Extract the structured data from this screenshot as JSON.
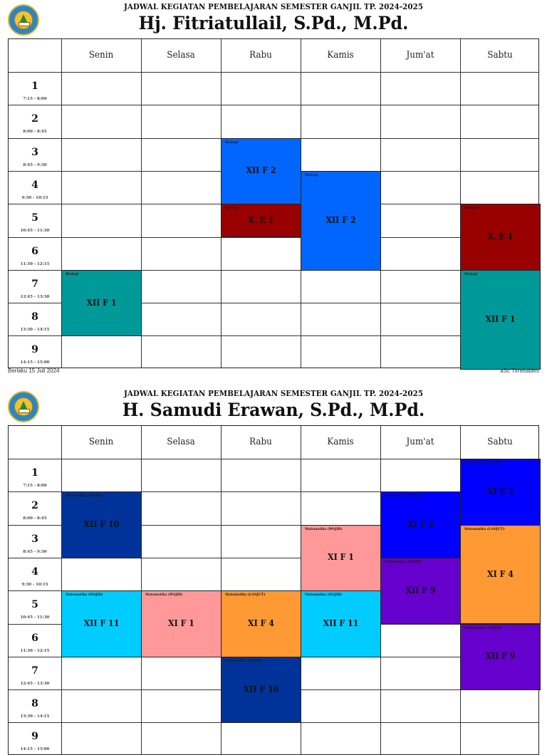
{
  "document": {
    "subtitle": "JADWAL KEGIATAN PEMBELAJARAN SEMESTER GANJIL TP. 2024-2025",
    "days": [
      "Senin",
      "Selasa",
      "Rabu",
      "Kamis",
      "Jum'at",
      "Sabtu"
    ],
    "periods": [
      {
        "num": "1",
        "time": "7:15 - 8:00"
      },
      {
        "num": "2",
        "time": "8:00 - 8:45"
      },
      {
        "num": "3",
        "time": "8:45 - 9:30"
      },
      {
        "num": "4",
        "time": "9:30 - 10:15"
      },
      {
        "num": "5",
        "time": "10:45 - 11:30"
      },
      {
        "num": "6",
        "time": "11:30 - 12:15"
      },
      {
        "num": "7",
        "time": "12:45 - 13:30"
      },
      {
        "num": "8",
        "time": "13:30 - 14:15"
      },
      {
        "num": "9",
        "time": "14:15 - 15:00"
      }
    ],
    "icons": {
      "logo": "school-emblem-icon"
    }
  },
  "schedules": [
    {
      "teacher": "Hj. Fitriatullail, S.Pd., M.Pd.",
      "footer_left": "Berlaku 15 Juli 2024",
      "footer_right": "aSc Timetables",
      "lessons": [
        {
          "day": 2,
          "start": 3,
          "span": 2,
          "subject": "Biologi",
          "class": "XII F 2",
          "color": "#0066ff"
        },
        {
          "day": 2,
          "start": 5,
          "span": 1,
          "subject": "Biologi",
          "class": "X. E 1",
          "color": "#990000"
        },
        {
          "day": 3,
          "start": 4,
          "span": 3,
          "subject": "Biologi",
          "class": "XII F 2",
          "color": "#0066ff"
        },
        {
          "day": 5,
          "start": 5,
          "span": 2,
          "subject": "Biologi",
          "class": "X. E 1",
          "color": "#990000"
        },
        {
          "day": 0,
          "start": 7,
          "span": 2,
          "subject": "Biologi",
          "class": "XII F 1",
          "color": "#009999"
        },
        {
          "day": 5,
          "start": 7,
          "span": 3,
          "subject": "Biologi",
          "class": "XII F 1",
          "color": "#009999"
        }
      ]
    },
    {
      "teacher": "H. Samudi Erawan, S.Pd., M.Pd.",
      "lessons": [
        {
          "day": 5,
          "start": 1,
          "span": 2,
          "subject": "Matematika (WAJIB)",
          "class": "XI F 2",
          "color": "#0000ff"
        },
        {
          "day": 0,
          "start": 2,
          "span": 2,
          "subject": "Matematika (WAJIB)",
          "class": "XII F 10",
          "color": "#003399"
        },
        {
          "day": 4,
          "start": 2,
          "span": 2,
          "subject": "Matematika (WAJIB)",
          "class": "XI F 2",
          "color": "#0000ff"
        },
        {
          "day": 3,
          "start": 3,
          "span": 2,
          "subject": "Matematika (WAJIB)",
          "class": "XI F 1",
          "color": "#ff9999"
        },
        {
          "day": 5,
          "start": 3,
          "span": 3,
          "subject": "Matematika (LANJUT)",
          "class": "XI F 4",
          "color": "#ff9933"
        },
        {
          "day": 4,
          "start": 4,
          "span": 2,
          "subject": "Matematika (WAJIB)",
          "class": "XII F 9",
          "color": "#6600cc"
        },
        {
          "day": 0,
          "start": 5,
          "span": 2,
          "subject": "Matematika (WAJIB)",
          "class": "XII F 11",
          "color": "#00ccff"
        },
        {
          "day": 1,
          "start": 5,
          "span": 2,
          "subject": "Matematika (WAJIB)",
          "class": "XI F 1",
          "color": "#ff9999"
        },
        {
          "day": 2,
          "start": 5,
          "span": 2,
          "subject": "Matematika (LANJUT)",
          "class": "XI F 4",
          "color": "#ff9933"
        },
        {
          "day": 3,
          "start": 5,
          "span": 2,
          "subject": "Matematika (WAJIB)",
          "class": "XII F 11",
          "color": "#00ccff"
        },
        {
          "day": 5,
          "start": 6,
          "span": 2,
          "subject": "Matematika (WAJIB)",
          "class": "XII F 9",
          "color": "#6600cc"
        },
        {
          "day": 2,
          "start": 7,
          "span": 2,
          "subject": "Matematika (WAJIB)",
          "class": "XII F 10",
          "color": "#003399"
        }
      ]
    }
  ]
}
